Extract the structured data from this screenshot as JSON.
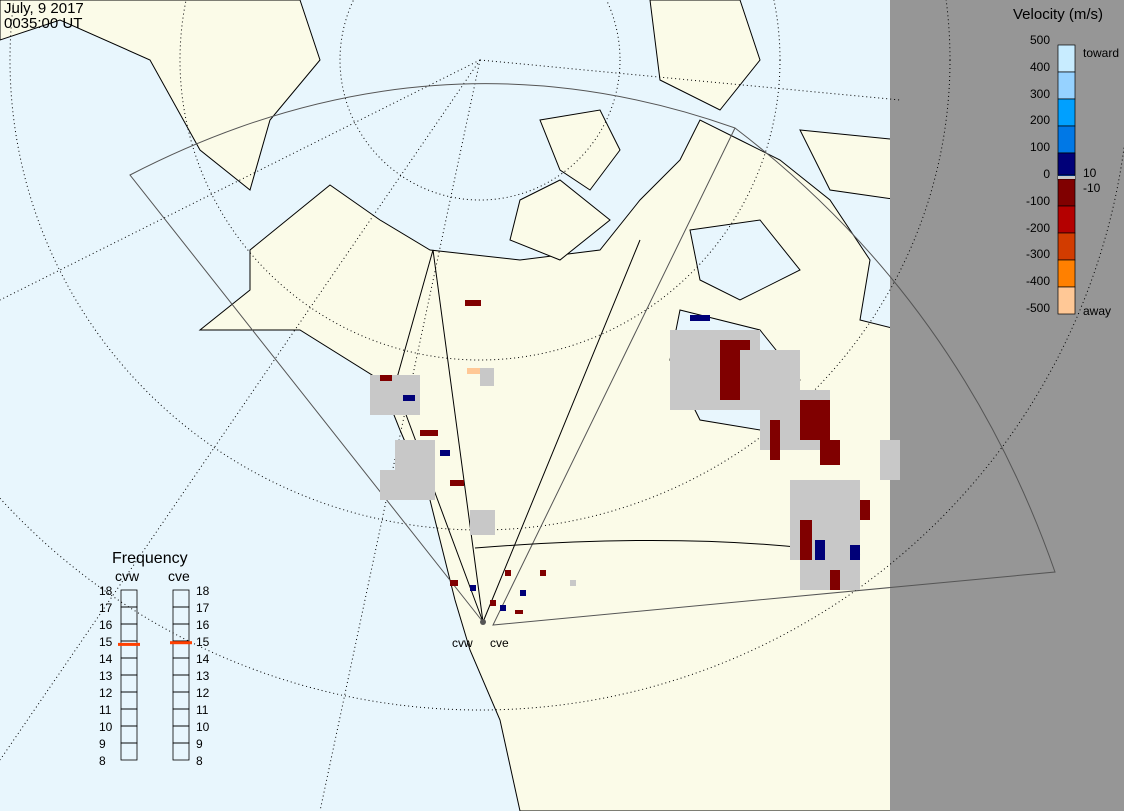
{
  "header": {
    "date": "July, 9 2017",
    "time": "0035:00 UT"
  },
  "legend": {
    "title": "Velocity (m/s)",
    "ticks": [
      "500",
      "400",
      "300",
      "200",
      "100",
      "0",
      "-100",
      "-200",
      "-300",
      "-400",
      "-500"
    ],
    "toward": "toward",
    "away": "away",
    "gs_hi": "10",
    "gs_lo": "-10",
    "colors": [
      "#c8ecff",
      "#96d2ff",
      "#00a0ff",
      "#0078e6",
      "#0040b4",
      "#000078",
      "#800000",
      "#b40000",
      "#d23c00",
      "#ff8000",
      "#ffc896"
    ]
  },
  "frequency": {
    "title": "Frequency",
    "radars": [
      {
        "name": "cvw",
        "value_mhz": 14.8
      },
      {
        "name": "cve",
        "value_mhz": 14.9
      }
    ],
    "ticks": [
      "18",
      "17",
      "16",
      "15",
      "14",
      "13",
      "12",
      "11",
      "10",
      "9",
      "8"
    ],
    "marker_color": "#ff4000"
  },
  "sites": [
    {
      "label": "cvw"
    },
    {
      "label": "cve"
    }
  ],
  "colors": {
    "ocean": "#e8f6fd",
    "land": "#fbfbe8",
    "night": "#969696",
    "groundscatter": "#c8c8c8"
  }
}
